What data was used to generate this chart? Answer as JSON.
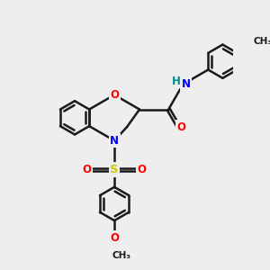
{
  "background_color": "#eeeeee",
  "bond_color": "#1a1a1a",
  "atom_colors": {
    "O": "#ff0000",
    "N": "#0000ff",
    "S": "#cccc00",
    "H": "#008b8b",
    "C": "#1a1a1a"
  },
  "figsize": [
    3.0,
    3.0
  ],
  "dpi": 100
}
